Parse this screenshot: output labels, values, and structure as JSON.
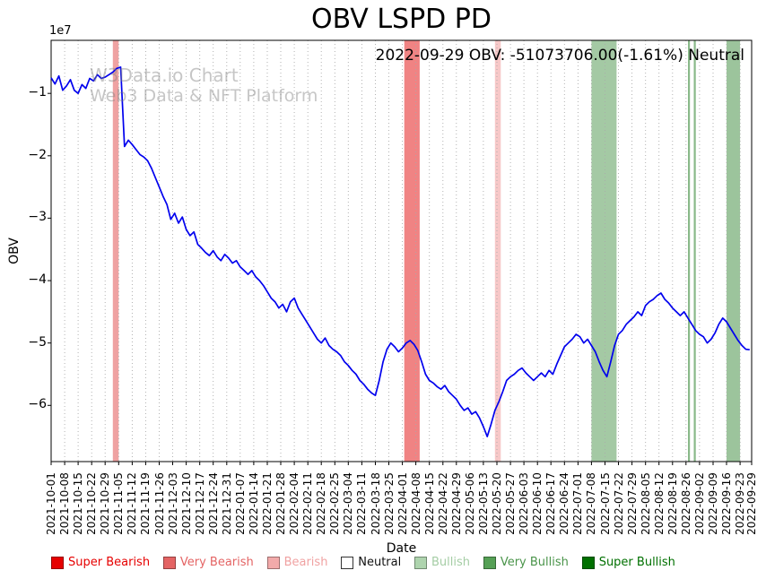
{
  "title": "OBV LSPD PD",
  "annotation": "2022-09-29 OBV: -51073706.00(-1.61%) Neutral",
  "watermark": {
    "line1": "W3Data.io Chart",
    "line2": "Web3 Data & NFT Platform"
  },
  "axes": {
    "ylabel": "OBV",
    "xlabel": "Date",
    "offset_text": "1e7"
  },
  "legend": {
    "items": [
      {
        "label": "Super Bearish",
        "swatch": "#e60000",
        "text_color": "#e60000"
      },
      {
        "label": "Very Bearish",
        "swatch": "#e46464",
        "text_color": "#e46464"
      },
      {
        "label": "Bearish",
        "swatch": "#f2aaaa",
        "text_color": "#f0a2a2"
      },
      {
        "label": "Neutral",
        "swatch": "#ffffff",
        "text_color": "#111111"
      },
      {
        "label": "Bullish",
        "swatch": "#aed4ae",
        "text_color": "#a5cda5"
      },
      {
        "label": "Very Bullish",
        "swatch": "#55a055",
        "text_color": "#4a944a"
      },
      {
        "label": "Super Bullish",
        "swatch": "#007000",
        "text_color": "#007000"
      }
    ]
  },
  "chart_data": {
    "type": "line",
    "title": "OBV LSPD PD",
    "xlabel": "Date",
    "ylabel": "OBV",
    "y_unit_multiplier": 10000000,
    "line_color": "#0000ee",
    "grid": "vertical-dotted",
    "ylim": [
      -6.9,
      -0.15
    ],
    "ytick_values": [
      -1,
      -2,
      -3,
      -4,
      -5,
      -6
    ],
    "ytick_labels": [
      "−1",
      "−2",
      "−3",
      "−4",
      "−5",
      "−6"
    ],
    "xtick_days": [
      0,
      7,
      14,
      21,
      28,
      35,
      42,
      49,
      56,
      63,
      70,
      77,
      84,
      91,
      98,
      105,
      112,
      119,
      126,
      133,
      140,
      147,
      154,
      161,
      168,
      175,
      182,
      189,
      196,
      203,
      210,
      217,
      224,
      231,
      238,
      245,
      252,
      259,
      266,
      273,
      280,
      287,
      294,
      301,
      308,
      315,
      322,
      329,
      336,
      343,
      350,
      357,
      363
    ],
    "xtick_labels": [
      "2021-10-01",
      "2021-10-08",
      "2021-10-15",
      "2021-10-22",
      "2021-10-29",
      "2021-11-05",
      "2021-11-12",
      "2021-11-19",
      "2021-11-26",
      "2021-12-03",
      "2021-12-10",
      "2021-12-17",
      "2021-12-24",
      "2021-12-31",
      "2022-01-07",
      "2022-01-14",
      "2022-01-21",
      "2022-01-28",
      "2022-02-04",
      "2022-02-11",
      "2022-02-18",
      "2022-02-25",
      "2022-03-04",
      "2022-03-11",
      "2022-03-18",
      "2022-03-25",
      "2022-04-01",
      "2022-04-08",
      "2022-04-15",
      "2022-04-22",
      "2022-04-29",
      "2022-05-06",
      "2022-05-13",
      "2022-05-20",
      "2022-05-27",
      "2022-06-03",
      "2022-06-10",
      "2022-06-17",
      "2022-06-24",
      "2022-07-01",
      "2022-07-08",
      "2022-07-15",
      "2022-07-22",
      "2022-07-29",
      "2022-08-05",
      "2022-08-12",
      "2022-08-19",
      "2022-08-26",
      "2022-09-02",
      "2022-09-09",
      "2022-09-16",
      "2022-09-23",
      "2022-09-29"
    ],
    "series": [
      {
        "name": "OBV",
        "start_day": 0,
        "step_days": 2,
        "values_1e7": [
          -0.75,
          -0.85,
          -0.72,
          -0.95,
          -0.88,
          -0.78,
          -0.95,
          -1.0,
          -0.86,
          -0.92,
          -0.76,
          -0.8,
          -0.7,
          -0.76,
          -0.74,
          -0.7,
          -0.66,
          -0.6,
          -0.58,
          -1.85,
          -1.75,
          -1.82,
          -1.9,
          -1.98,
          -2.02,
          -2.08,
          -2.2,
          -2.35,
          -2.5,
          -2.65,
          -2.78,
          -3.02,
          -2.92,
          -3.08,
          -2.98,
          -3.18,
          -3.28,
          -3.22,
          -3.42,
          -3.48,
          -3.55,
          -3.6,
          -3.52,
          -3.62,
          -3.68,
          -3.58,
          -3.64,
          -3.72,
          -3.68,
          -3.78,
          -3.84,
          -3.9,
          -3.84,
          -3.94,
          -4.0,
          -4.08,
          -4.18,
          -4.28,
          -4.34,
          -4.44,
          -4.38,
          -4.5,
          -4.34,
          -4.28,
          -4.44,
          -4.54,
          -4.64,
          -4.74,
          -4.84,
          -4.94,
          -5.0,
          -4.92,
          -5.04,
          -5.1,
          -5.14,
          -5.2,
          -5.3,
          -5.36,
          -5.44,
          -5.5,
          -5.6,
          -5.66,
          -5.74,
          -5.8,
          -5.84,
          -5.6,
          -5.3,
          -5.1,
          -5.0,
          -5.06,
          -5.14,
          -5.08,
          -5.0,
          -4.96,
          -5.02,
          -5.12,
          -5.3,
          -5.5,
          -5.6,
          -5.64,
          -5.7,
          -5.74,
          -5.68,
          -5.78,
          -5.84,
          -5.9,
          -6.0,
          -6.08,
          -6.04,
          -6.14,
          -6.1,
          -6.2,
          -6.34,
          -6.5,
          -6.3,
          -6.08,
          -5.94,
          -5.78,
          -5.6,
          -5.54,
          -5.5,
          -5.44,
          -5.4,
          -5.48,
          -5.54,
          -5.6,
          -5.54,
          -5.48,
          -5.54,
          -5.44,
          -5.5,
          -5.34,
          -5.2,
          -5.06,
          -5.0,
          -4.94,
          -4.86,
          -4.9,
          -5.0,
          -4.94,
          -5.04,
          -5.14,
          -5.3,
          -5.44,
          -5.54,
          -5.3,
          -5.04,
          -4.86,
          -4.8,
          -4.7,
          -4.64,
          -4.58,
          -4.5,
          -4.56,
          -4.4,
          -4.34,
          -4.3,
          -4.24,
          -4.2,
          -4.3,
          -4.36,
          -4.44,
          -4.5,
          -4.56,
          -4.5,
          -4.6,
          -4.7,
          -4.8,
          -4.86,
          -4.9,
          -5.0,
          -4.94,
          -4.84,
          -4.7,
          -4.6,
          -4.66,
          -4.76,
          -4.86,
          -4.96,
          -5.04,
          -5.1,
          -5.107
        ]
      }
    ],
    "bands": [
      {
        "start_day": 32,
        "end_day": 35,
        "signal": "Very Bearish",
        "color": "#e46464",
        "opacity": 0.6
      },
      {
        "start_day": 183,
        "end_day": 191,
        "signal": "Very Bearish",
        "color": "#e84040",
        "opacity": 0.65
      },
      {
        "start_day": 230,
        "end_day": 233,
        "signal": "Bearish",
        "color": "#f2aaaa",
        "opacity": 0.65
      },
      {
        "start_day": 280,
        "end_day": 293,
        "signal": "Very Bullish",
        "color": "#4a944a",
        "opacity": 0.5
      },
      {
        "start_day": 330,
        "end_day": 331,
        "signal": "Very Bullish",
        "color": "#4a944a",
        "opacity": 0.65
      },
      {
        "start_day": 333,
        "end_day": 334,
        "signal": "Very Bullish",
        "color": "#4a944a",
        "opacity": 0.65
      },
      {
        "start_day": 350,
        "end_day": 357,
        "signal": "Very Bullish",
        "color": "#4a944a",
        "opacity": 0.55
      }
    ],
    "final_point": {
      "date": "2022-09-29",
      "obv": -51073706.0,
      "pct_change": -1.61,
      "signal": "Neutral"
    }
  }
}
